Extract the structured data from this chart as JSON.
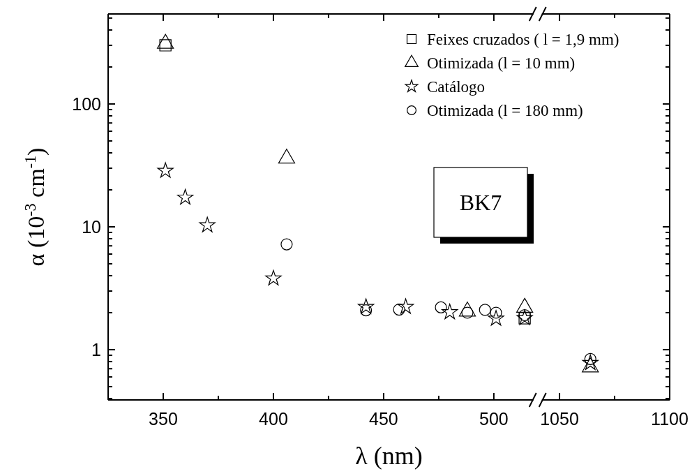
{
  "chart_data": [
    {
      "type": "scatter",
      "xlabel": "λ (nm)",
      "ylabel": "α (10$^{-3}$ cm$^{-1}$)",
      "log": "y",
      "legend": "top right",
      "xlim": [
        325,
        518
      ],
      "xticks": [
        350,
        {
          "value": 375,
          "label": null
        },
        400,
        {
          "value": 425,
          "label": null
        },
        450,
        {
          "value": 475,
          "label": null
        },
        500
      ],
      "ylim": [
        0.39,
        540
      ],
      "yticks": [
        {
          "value": 0.4,
          "label": null
        },
        {
          "value": 0.5,
          "label": null
        },
        {
          "value": 0.6,
          "label": null
        },
        {
          "value": 0.7,
          "label": null
        },
        {
          "value": 0.8,
          "label": null
        },
        {
          "value": 0.9,
          "label": null
        },
        1,
        {
          "value": 2,
          "label": null
        },
        {
          "value": 3,
          "label": null
        },
        {
          "value": 4,
          "label": null
        },
        {
          "value": 5,
          "label": null
        },
        {
          "value": 6,
          "label": null
        },
        {
          "value": 7,
          "label": null
        },
        {
          "value": 8,
          "label": null
        },
        {
          "value": 9,
          "label": null
        },
        10,
        {
          "value": 20,
          "label": null
        },
        {
          "value": 30,
          "label": null
        },
        {
          "value": 40,
          "label": null
        },
        {
          "value": 50,
          "label": null
        },
        {
          "value": 60,
          "label": null
        },
        {
          "value": 70,
          "label": null
        },
        {
          "value": 80,
          "label": null
        },
        {
          "value": 90,
          "label": null
        },
        100,
        {
          "value": 200,
          "label": null
        },
        {
          "value": 300,
          "label": null
        },
        {
          "value": 400,
          "label": null
        },
        {
          "value": 500,
          "label": null
        }
      ],
      "annotations": [
        "BK7"
      ],
      "series": [
        {
          "name": "Feixes cruzados ( l = 1,9 mm)",
          "color": "#000000",
          "marker": "square",
          "x": [
            351,
            514
          ],
          "values": [
            300,
            1.8
          ]
        },
        {
          "name": "Otimizada (l = 10 mm)",
          "color": "#000000",
          "marker": "triangle",
          "x": [
            351,
            406,
            488,
            514
          ],
          "values": [
            310,
            36,
            2.05,
            2.2
          ]
        },
        {
          "name": "Catálogo",
          "color": "#000000",
          "marker": "star",
          "x": [
            351,
            360,
            370,
            400,
            442,
            460,
            480,
            501,
            514
          ],
          "values": [
            28.6,
            17.3,
            10.3,
            3.8,
            2.23,
            2.23,
            2.02,
            1.79,
            1.81
          ]
        },
        {
          "name": "Otimizada (l = 180 mm)",
          "color": "#000000",
          "marker": "circle",
          "x": [
            406,
            442,
            457,
            476,
            488,
            496,
            501,
            514
          ],
          "values": [
            7.2,
            2.09,
            2.12,
            2.21,
            2.0,
            2.11,
            2.0,
            1.91
          ]
        }
      ]
    },
    {
      "type": "scatter",
      "log": "y",
      "tick_labels": "x",
      "xlim": [
        1042,
        1100
      ],
      "xticks": [
        1050,
        {
          "value": 1075,
          "label": null
        },
        1100
      ],
      "ylim": [
        0.39,
        540
      ],
      "yticks": [
        {
          "value": 0.4,
          "label": null
        },
        {
          "value": 0.5,
          "label": null
        },
        {
          "value": 0.6,
          "label": null
        },
        {
          "value": 0.7,
          "label": null
        },
        {
          "value": 0.8,
          "label": null
        },
        {
          "value": 0.9,
          "label": null
        },
        {
          "value": 1,
          "label": null
        },
        {
          "value": 2,
          "label": null
        },
        {
          "value": 3,
          "label": null
        },
        {
          "value": 4,
          "label": null
        },
        {
          "value": 5,
          "label": null
        },
        {
          "value": 6,
          "label": null
        },
        {
          "value": 7,
          "label": null
        },
        {
          "value": 8,
          "label": null
        },
        {
          "value": 9,
          "label": null
        },
        {
          "value": 10,
          "label": null
        },
        {
          "value": 20,
          "label": null
        },
        {
          "value": 30,
          "label": null
        },
        {
          "value": 40,
          "label": null
        },
        {
          "value": 50,
          "label": null
        },
        {
          "value": 60,
          "label": null
        },
        {
          "value": 70,
          "label": null
        },
        {
          "value": 80,
          "label": null
        },
        {
          "value": 90,
          "label": null
        },
        {
          "value": 100,
          "label": null
        },
        {
          "value": 200,
          "label": null
        },
        {
          "value": 300,
          "label": null
        },
        {
          "value": 400,
          "label": null
        },
        {
          "value": 500,
          "label": null
        }
      ],
      "series": [
        {
          "color": "#000000",
          "marker": "triangle",
          "x": [
            1064
          ],
          "values": [
            0.72
          ]
        },
        {
          "color": "#000000",
          "marker": "star",
          "x": [
            1064
          ],
          "values": [
            0.78
          ]
        },
        {
          "color": "#000000",
          "marker": "circle",
          "x": [
            1064
          ],
          "values": [
            0.84
          ]
        }
      ]
    }
  ]
}
